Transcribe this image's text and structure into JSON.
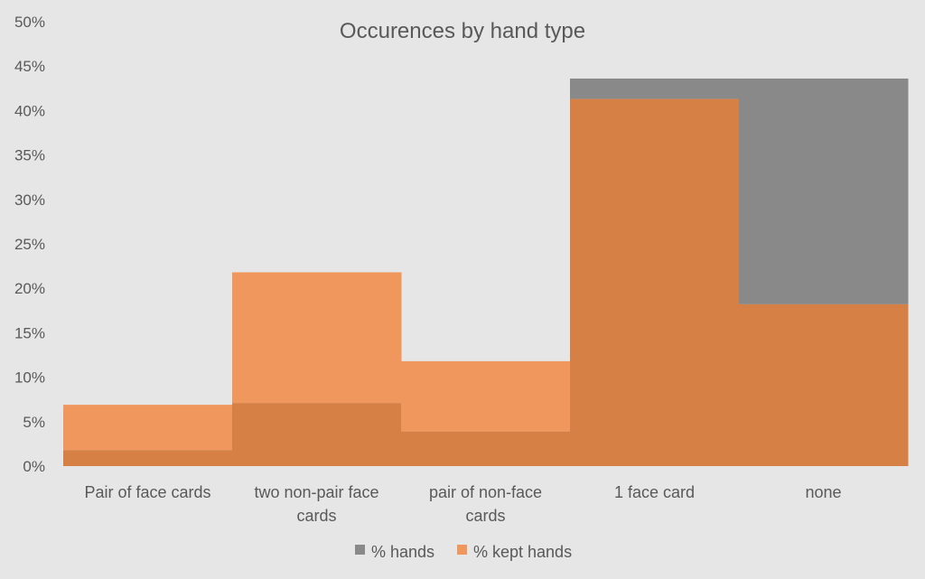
{
  "chart_data": {
    "type": "area",
    "title": "Occurences by hand type",
    "xlabel": "",
    "ylabel": "",
    "categories": [
      [
        "Pair of face cards"
      ],
      [
        "two non-pair face",
        "cards"
      ],
      [
        "pair of non-face",
        "cards"
      ],
      [
        "1 face card"
      ],
      [
        "none"
      ]
    ],
    "ylim": [
      0,
      50
    ],
    "yticks": [
      0,
      5,
      10,
      15,
      20,
      25,
      30,
      35,
      40,
      45,
      50
    ],
    "ytick_labels": [
      "0%",
      "5%",
      "10%",
      "15%",
      "20%",
      "25%",
      "30%",
      "35%",
      "40%",
      "45%",
      "50%"
    ],
    "grid": false,
    "legend_position": "bottom",
    "series": [
      {
        "name": "% hands",
        "values": [
          1.8,
          7.1,
          3.9,
          43.6,
          43.6
        ],
        "color": "#898989"
      },
      {
        "name": "% kept hands",
        "values": [
          6.9,
          21.8,
          11.8,
          41.3,
          18.2
        ],
        "color": "#f0975e"
      }
    ],
    "overlap_color": "#d68046"
  }
}
